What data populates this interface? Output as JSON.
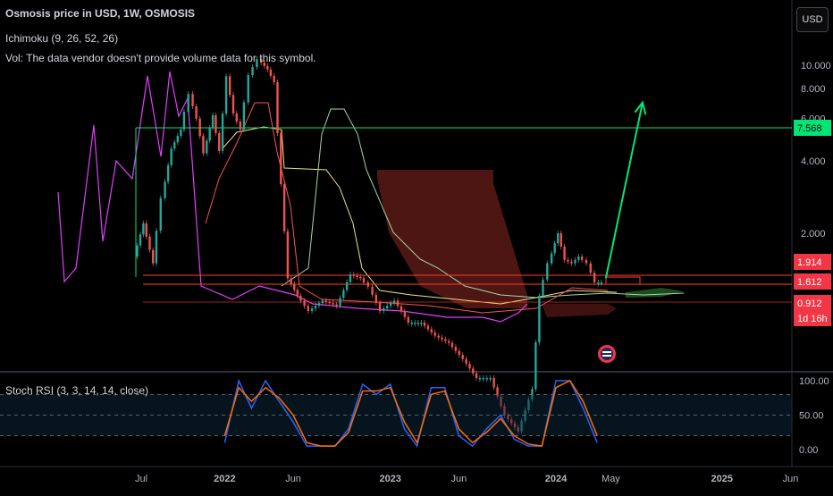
{
  "legend": {
    "title": "Osmosis price in USD, 1W, OSMOSIS",
    "ichimoku": "Ichimoku (9, 26, 52, 26)",
    "volume": "Vol: The data vendor doesn't provide volume data for this symbol."
  },
  "stoch_legend": "Stoch RSI (3, 3, 14, 14, close)",
  "currency_button": "USD",
  "price_labels": {
    "target": "7.568",
    "upper": "1.914",
    "current": "1.612",
    "lower": "0.912",
    "countdown": "1d 16h"
  },
  "colors": {
    "background": "#000000",
    "candle_up": "#26a69a",
    "candle_down": "#ef5350",
    "tenkan": "#f7525f",
    "kijun": "#f5e27a",
    "span_a": "#a5d6a7",
    "span_b": "#ef9a9a",
    "lagging": "#e040fb",
    "cloud_bear": "#5b1a16",
    "cloud_bull": "#2e7d32",
    "target_line": "#00e676",
    "support_line": "#ff3b30",
    "stoch_k": "#2962ff",
    "stoch_d": "#ff6d00"
  },
  "chart_data": [
    {
      "type": "line",
      "title": "Osmosis price in USD, 1W, OSMOSIS",
      "y_ticks": [
        "10.000",
        "8.000",
        "6.000",
        "4.000",
        "2.000"
      ],
      "x_ticks": [
        "Jul",
        "2022",
        "Jun",
        "2023",
        "Jun",
        "2024",
        "May",
        "2025",
        "Jun"
      ],
      "x_tick_positions": [
        "2021-07-01",
        "2022-01-01",
        "2022-06-01",
        "2023-01-01",
        "2023-06-01",
        "2024-01-01",
        "2024-05-01",
        "2025-01-01",
        "2025-06-01"
      ],
      "series": [
        {
          "name": "price",
          "x": [
            "2021-06-20",
            "2021-07-10",
            "2021-08-01",
            "2021-08-20",
            "2021-09-10",
            "2021-10-01",
            "2021-10-20",
            "2021-11-05",
            "2021-11-20",
            "2021-12-10",
            "2021-12-25",
            "2022-01-10",
            "2022-01-25",
            "2022-02-10",
            "2022-03-01",
            "2022-03-20",
            "2022-04-10",
            "2022-04-25",
            "2022-05-10",
            "2022-05-25",
            "2022-06-15",
            "2022-07-10",
            "2022-08-10",
            "2022-09-10",
            "2022-10-10",
            "2022-11-01",
            "2022-11-20",
            "2022-12-15",
            "2023-01-15",
            "2023-02-15",
            "2023-03-15",
            "2023-04-15",
            "2023-05-15",
            "2023-06-15",
            "2023-07-15",
            "2023-08-15",
            "2023-09-15",
            "2023-10-15",
            "2023-11-15",
            "2023-12-01",
            "2023-12-20",
            "2024-01-10",
            "2024-01-25",
            "2024-02-10",
            "2024-02-25",
            "2024-03-15",
            "2024-04-01",
            "2024-04-15"
          ],
          "y": [
            1.6,
            2.2,
            1.5,
            2.8,
            4.5,
            5.4,
            7.6,
            6.0,
            4.3,
            6.2,
            4.4,
            9.0,
            6.3,
            5.4,
            9.1,
            10.6,
            9.6,
            8.5,
            3.2,
            1.3,
            1.1,
            0.95,
            1.05,
            1.0,
            1.35,
            1.3,
            1.2,
            0.95,
            1.05,
            0.85,
            0.85,
            0.75,
            0.7,
            0.6,
            0.5,
            0.5,
            0.35,
            0.3,
            0.45,
            1.1,
            1.5,
            2.0,
            1.55,
            1.5,
            1.6,
            1.5,
            1.25,
            1.25
          ]
        },
        {
          "name": "target",
          "x": [
            "2024-04-20",
            "2024-07-10"
          ],
          "y": [
            1.3,
            7.0
          ]
        }
      ],
      "levels": [
        7.568,
        1.914,
        1.612,
        0.912
      ],
      "countdown": "1d 16h"
    },
    {
      "type": "line",
      "title": "Stoch RSI (3, 3, 14, 14, close)",
      "y_ticks": [
        "100.00",
        "50.00",
        "0.00"
      ],
      "ylim": [
        0,
        100
      ],
      "x": [
        "2022-01-01",
        "2022-02-01",
        "2022-03-01",
        "2022-04-01",
        "2022-05-01",
        "2022-06-01",
        "2022-07-01",
        "2022-08-01",
        "2022-09-01",
        "2022-10-01",
        "2022-11-01",
        "2022-12-01",
        "2023-01-01",
        "2023-02-01",
        "2023-03-01",
        "2023-04-01",
        "2023-05-01",
        "2023-06-01",
        "2023-07-01",
        "2023-08-01",
        "2023-09-01",
        "2023-10-01",
        "2023-11-01",
        "2023-12-01",
        "2024-01-01",
        "2024-02-01",
        "2024-03-01",
        "2024-04-01"
      ],
      "series": [
        {
          "name": "K",
          "values": [
            10,
            100,
            60,
            100,
            70,
            40,
            5,
            5,
            5,
            30,
            95,
            80,
            95,
            30,
            5,
            90,
            90,
            20,
            5,
            30,
            50,
            15,
            5,
            5,
            100,
            100,
            60,
            10
          ]
        },
        {
          "name": "D",
          "values": [
            20,
            90,
            70,
            90,
            75,
            50,
            10,
            5,
            5,
            25,
            85,
            85,
            90,
            40,
            10,
            80,
            85,
            30,
            10,
            25,
            45,
            20,
            8,
            5,
            90,
            100,
            70,
            20
          ]
        }
      ]
    }
  ]
}
